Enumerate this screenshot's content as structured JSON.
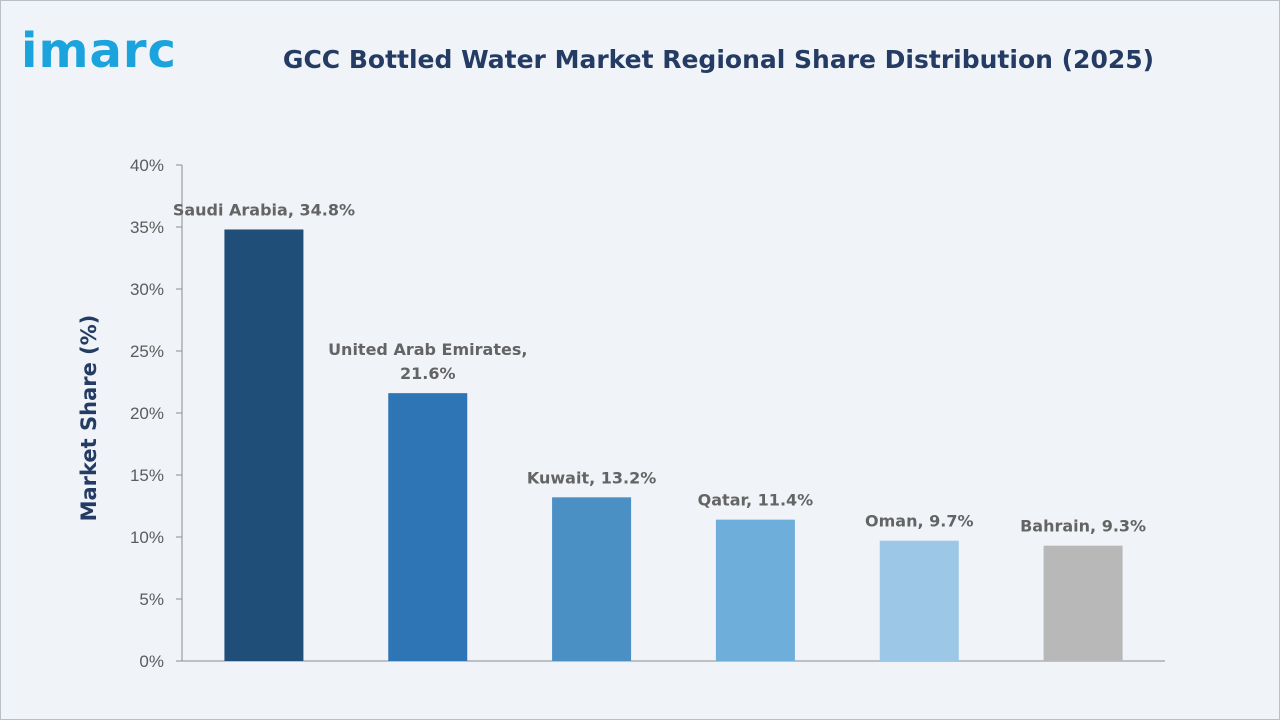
{
  "brand": {
    "logo_text": "imarc",
    "logo_color": "#1aa3dc"
  },
  "chart_data": {
    "type": "bar",
    "title": "GCC Bottled Water Market Regional Share Distribution (2025)",
    "xlabel": "",
    "ylabel": "Market Share (%)",
    "ylim": [
      0,
      40
    ],
    "ytick_step": 5,
    "ytick_suffix": "%",
    "grid": false,
    "categories": [
      "Saudi Arabia",
      "United Arab Emirates",
      "Kuwait",
      "Qatar",
      "Oman",
      "Bahrain"
    ],
    "values": [
      34.8,
      21.6,
      13.2,
      11.4,
      9.7,
      9.3
    ],
    "data_labels": [
      [
        "Saudi Arabia, 34.8%"
      ],
      [
        "United Arab Emirates,",
        "21.6%"
      ],
      [
        "Kuwait, 13.2%"
      ],
      [
        "Qatar, 11.4%"
      ],
      [
        "Oman, 9.7%"
      ],
      [
        "Bahrain, 9.3%"
      ]
    ],
    "colors": [
      "#1f4e79",
      "#2e75b6",
      "#4a90c4",
      "#6eaedb",
      "#9dc7e6",
      "#b8b8b8"
    ]
  }
}
